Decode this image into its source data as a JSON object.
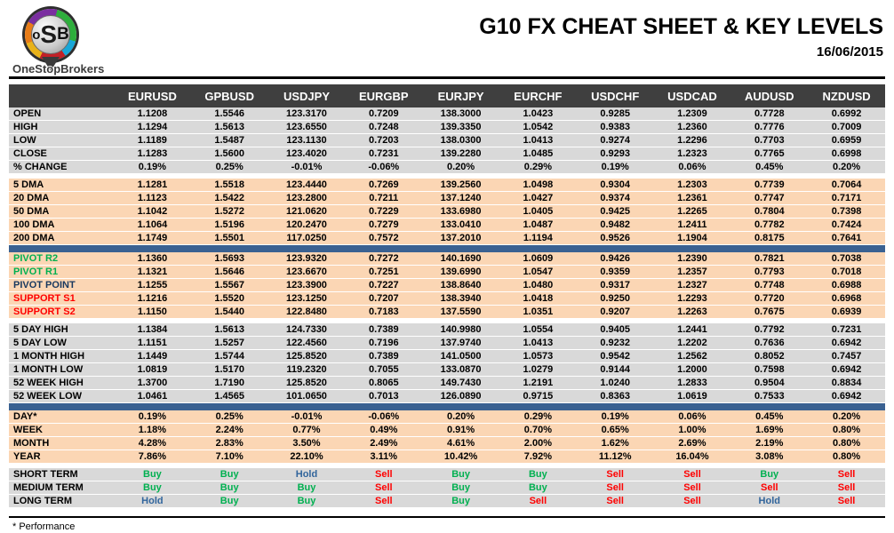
{
  "header": {
    "logo": {
      "l1": "o",
      "l2": "S",
      "l3": "B",
      "name": "OneStopBrokers"
    },
    "title": "G10 FX CHEAT SHEET & KEY LEVELS",
    "date": "16/06/2015"
  },
  "table": {
    "columns": [
      "EURUSD",
      "GPBUSD",
      "USDJPY",
      "EURGBP",
      "EURJPY",
      "EURCHF",
      "USDCHF",
      "USDCAD",
      "AUDUSD",
      "NZDUSD"
    ],
    "sections": [
      {
        "id": "daily",
        "style": "gray",
        "after": "gap",
        "rows": [
          {
            "label": "OPEN",
            "values": [
              "1.1208",
              "1.5546",
              "123.3170",
              "0.7209",
              "138.3000",
              "1.0423",
              "0.9285",
              "1.2309",
              "0.7728",
              "0.6992"
            ]
          },
          {
            "label": "HIGH",
            "values": [
              "1.1294",
              "1.5613",
              "123.6550",
              "0.7248",
              "139.3350",
              "1.0542",
              "0.9383",
              "1.2360",
              "0.7776",
              "0.7009"
            ]
          },
          {
            "label": "LOW",
            "values": [
              "1.1189",
              "1.5487",
              "123.1130",
              "0.7203",
              "138.0300",
              "1.0413",
              "0.9274",
              "1.2296",
              "0.7703",
              "0.6959"
            ]
          },
          {
            "label": "CLOSE",
            "values": [
              "1.1283",
              "1.5600",
              "123.4020",
              "0.7231",
              "139.2280",
              "1.0485",
              "0.9293",
              "1.2323",
              "0.7765",
              "0.6998"
            ]
          },
          {
            "label": "% CHANGE",
            "values": [
              "0.19%",
              "0.25%",
              "-0.01%",
              "-0.06%",
              "0.20%",
              "0.29%",
              "0.19%",
              "0.06%",
              "0.45%",
              "0.20%"
            ]
          }
        ]
      },
      {
        "id": "dma",
        "style": "peach",
        "after": "bar",
        "rows": [
          {
            "label": "5 DMA",
            "values": [
              "1.1281",
              "1.5518",
              "123.4440",
              "0.7269",
              "139.2560",
              "1.0498",
              "0.9304",
              "1.2303",
              "0.7739",
              "0.7064"
            ]
          },
          {
            "label": "20 DMA",
            "values": [
              "1.1123",
              "1.5422",
              "123.2800",
              "0.7211",
              "137.1240",
              "1.0427",
              "0.9374",
              "1.2361",
              "0.7747",
              "0.7171"
            ]
          },
          {
            "label": "50 DMA",
            "values": [
              "1.1042",
              "1.5272",
              "121.0620",
              "0.7229",
              "133.6980",
              "1.0405",
              "0.9425",
              "1.2265",
              "0.7804",
              "0.7398"
            ]
          },
          {
            "label": "100 DMA",
            "values": [
              "1.1064",
              "1.5196",
              "120.2470",
              "0.7279",
              "133.0410",
              "1.0487",
              "0.9482",
              "1.2411",
              "0.7782",
              "0.7424"
            ]
          },
          {
            "label": "200 DMA",
            "values": [
              "1.1749",
              "1.5501",
              "117.0250",
              "0.7572",
              "137.2010",
              "1.1194",
              "0.9526",
              "1.1904",
              "0.8175",
              "0.7641"
            ]
          }
        ]
      },
      {
        "id": "pivots",
        "style": "peach",
        "after": "gap",
        "rows": [
          {
            "label": "PIVOT R2",
            "lc": "green",
            "values": [
              "1.1360",
              "1.5693",
              "123.9320",
              "0.7272",
              "140.1690",
              "1.0609",
              "0.9426",
              "1.2390",
              "0.7821",
              "0.7038"
            ]
          },
          {
            "label": "PIVOT R1",
            "lc": "green",
            "values": [
              "1.1321",
              "1.5646",
              "123.6670",
              "0.7251",
              "139.6990",
              "1.0547",
              "0.9359",
              "1.2357",
              "0.7793",
              "0.7018"
            ]
          },
          {
            "label": "PIVOT POINT",
            "lc": "navy",
            "values": [
              "1.1255",
              "1.5567",
              "123.3900",
              "0.7227",
              "138.8640",
              "1.0480",
              "0.9317",
              "1.2327",
              "0.7748",
              "0.6988"
            ]
          },
          {
            "label": "SUPPORT S1",
            "lc": "red",
            "values": [
              "1.1216",
              "1.5520",
              "123.1250",
              "0.7207",
              "138.3940",
              "1.0418",
              "0.9250",
              "1.2293",
              "0.7720",
              "0.6968"
            ]
          },
          {
            "label": "SUPPORT S2",
            "lc": "red",
            "values": [
              "1.1150",
              "1.5440",
              "122.8480",
              "0.7183",
              "137.5590",
              "1.0351",
              "0.9207",
              "1.2263",
              "0.7675",
              "0.6939"
            ]
          }
        ]
      },
      {
        "id": "ranges",
        "style": "gray",
        "after": "bar",
        "rows": [
          {
            "label": "5 DAY HIGH",
            "values": [
              "1.1384",
              "1.5613",
              "124.7330",
              "0.7389",
              "140.9980",
              "1.0554",
              "0.9405",
              "1.2441",
              "0.7792",
              "0.7231"
            ]
          },
          {
            "label": "5 DAY LOW",
            "values": [
              "1.1151",
              "1.5257",
              "122.4560",
              "0.7196",
              "137.9740",
              "1.0413",
              "0.9232",
              "1.2202",
              "0.7636",
              "0.6942"
            ]
          },
          {
            "label": "1 MONTH HIGH",
            "values": [
              "1.1449",
              "1.5744",
              "125.8520",
              "0.7389",
              "141.0500",
              "1.0573",
              "0.9542",
              "1.2562",
              "0.8052",
              "0.7457"
            ]
          },
          {
            "label": "1 MONTH LOW",
            "values": [
              "1.0819",
              "1.5170",
              "119.2320",
              "0.7055",
              "133.0870",
              "1.0279",
              "0.9144",
              "1.2000",
              "0.7598",
              "0.6942"
            ]
          },
          {
            "label": "52 WEEK HIGH",
            "values": [
              "1.3700",
              "1.7190",
              "125.8520",
              "0.8065",
              "149.7430",
              "1.2191",
              "1.0240",
              "1.2833",
              "0.9504",
              "0.8834"
            ]
          },
          {
            "label": "52 WEEK LOW",
            "values": [
              "1.0461",
              "1.4565",
              "101.0650",
              "0.7013",
              "126.0890",
              "0.9715",
              "0.8363",
              "1.0619",
              "0.7533",
              "0.6942"
            ]
          }
        ]
      },
      {
        "id": "performance",
        "style": "peach",
        "after": "gap",
        "rows": [
          {
            "label": "DAY*",
            "values": [
              "0.19%",
              "0.25%",
              "-0.01%",
              "-0.06%",
              "0.20%",
              "0.29%",
              "0.19%",
              "0.06%",
              "0.45%",
              "0.20%"
            ]
          },
          {
            "label": "WEEK",
            "values": [
              "1.18%",
              "2.24%",
              "0.77%",
              "0.49%",
              "0.91%",
              "0.70%",
              "0.65%",
              "1.00%",
              "1.69%",
              "0.80%"
            ]
          },
          {
            "label": "MONTH",
            "values": [
              "4.28%",
              "2.83%",
              "3.50%",
              "2.49%",
              "4.61%",
              "2.00%",
              "1.62%",
              "2.69%",
              "2.19%",
              "0.80%"
            ]
          },
          {
            "label": "YEAR",
            "values": [
              "7.86%",
              "7.10%",
              "22.10%",
              "3.11%",
              "10.42%",
              "7.92%",
              "11.12%",
              "16.04%",
              "3.08%",
              "0.80%"
            ]
          }
        ]
      },
      {
        "id": "signals",
        "style": "gray",
        "type": "signal",
        "after": null,
        "rows": [
          {
            "label": "SHORT TERM",
            "values": [
              "Buy",
              "Buy",
              "Hold",
              "Sell",
              "Buy",
              "Buy",
              "Sell",
              "Sell",
              "Buy",
              "Sell"
            ]
          },
          {
            "label": "MEDIUM TERM",
            "values": [
              "Buy",
              "Buy",
              "Buy",
              "Sell",
              "Buy",
              "Buy",
              "Sell",
              "Sell",
              "Sell",
              "Sell"
            ]
          },
          {
            "label": "LONG TERM",
            "values": [
              "Hold",
              "Buy",
              "Buy",
              "Sell",
              "Buy",
              "Sell",
              "Sell",
              "Sell",
              "Hold",
              "Sell"
            ]
          }
        ]
      }
    ]
  },
  "footer": {
    "note": "* Performance"
  },
  "colors": {
    "header_bg": "#3F3F3F",
    "gray_row": "#D9D9D9",
    "peach_row": "#FBD6B4",
    "separator_blue": "#3A6191",
    "buy_green": "#00B050",
    "sell_red": "#FF0000",
    "hold_blue": "#31659C",
    "pivot_green": "#00B050",
    "pivot_navy": "#17375E",
    "support_red": "#FF0000"
  }
}
